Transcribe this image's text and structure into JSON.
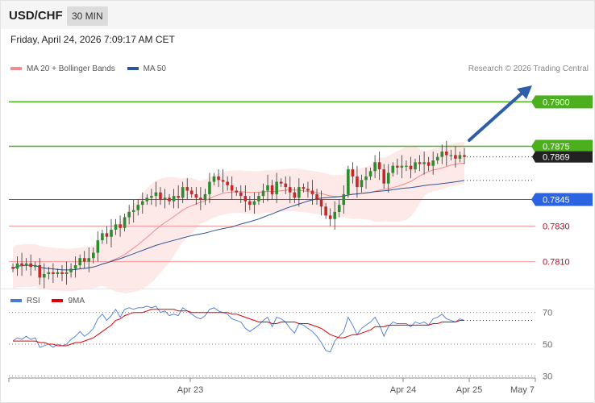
{
  "header": {
    "symbol": "USD/CHF",
    "timeframe": "30 MIN"
  },
  "timestamp": "Friday, April 24, 2026 7:09:17 AM CET",
  "legend": {
    "items": [
      {
        "label": "MA 20 + Bollinger Bands",
        "color": "#f28b8b"
      },
      {
        "label": "MA 50",
        "color": "#2c5597"
      }
    ],
    "credit": "Research © 2026 Trading Central"
  },
  "rsi_legend": {
    "items": [
      {
        "label": "RSI",
        "color": "#4a78d6"
      },
      {
        "label": "9MA",
        "color": "#e00000"
      }
    ]
  },
  "chart_data": {
    "type": "candlestick",
    "ylim": [
      0.7803,
      0.7912
    ],
    "x_ticks": [
      "Apr 23",
      "Apr 24",
      "Apr 25",
      "May 7"
    ],
    "levels": [
      {
        "value": 0.79,
        "label": "0.7900",
        "color": "#4caf1e",
        "kind": "target"
      },
      {
        "value": 0.7875,
        "label": "0.7875",
        "color": "#4caf1e",
        "kind": "resistance"
      },
      {
        "value": 0.7845,
        "label": "0.7845",
        "color": "#2b63e0",
        "kind": "pivot"
      },
      {
        "value": 0.783,
        "label": "0.7830",
        "color": "#f49a9a",
        "kind": "support"
      },
      {
        "value": 0.781,
        "label": "0.7810",
        "color": "#f49a9a",
        "kind": "support"
      }
    ],
    "last_price": {
      "value": 0.7869,
      "label": "0.7869"
    },
    "closes": [
      0.7806,
      0.7809,
      0.7808,
      0.7809,
      0.7807,
      0.7808,
      0.7801,
      0.7803,
      0.7804,
      0.7803,
      0.7804,
      0.7803,
      0.7804,
      0.7806,
      0.7808,
      0.7812,
      0.781,
      0.7812,
      0.7815,
      0.7822,
      0.7826,
      0.7824,
      0.7828,
      0.7831,
      0.7829,
      0.7835,
      0.7838,
      0.7839,
      0.7842,
      0.7844,
      0.7846,
      0.7847,
      0.7849,
      0.7845,
      0.7846,
      0.7844,
      0.7847,
      0.7846,
      0.7852,
      0.785,
      0.7848,
      0.7846,
      0.7845,
      0.7848,
      0.7855,
      0.7858,
      0.7856,
      0.7855,
      0.7853,
      0.785,
      0.7849,
      0.7847,
      0.7844,
      0.7842,
      0.7844,
      0.7847,
      0.785,
      0.7853,
      0.7848,
      0.7855,
      0.7854,
      0.7852,
      0.7849,
      0.7846,
      0.7852,
      0.7851,
      0.785,
      0.7848,
      0.7845,
      0.7841,
      0.7836,
      0.7834,
      0.7838,
      0.7842,
      0.7848,
      0.7862,
      0.7858,
      0.7852,
      0.7856,
      0.7858,
      0.7861,
      0.7866,
      0.7862,
      0.7854,
      0.786,
      0.7864,
      0.7863,
      0.7864,
      0.7864,
      0.7862,
      0.7866,
      0.7865,
      0.7866,
      0.7864,
      0.7867,
      0.7869,
      0.7872,
      0.787,
      0.787,
      0.7868,
      0.787,
      0.7869
    ],
    "rsi": {
      "ticks": [
        70,
        50,
        30
      ],
      "ylim": [
        22,
        78
      ],
      "values": [
        52,
        54,
        53,
        55,
        53,
        54,
        48,
        49,
        50,
        48,
        50,
        49,
        50,
        53,
        55,
        58,
        55,
        57,
        60,
        66,
        69,
        65,
        68,
        72,
        67,
        72,
        73,
        72,
        73,
        73,
        74,
        73,
        74,
        70,
        71,
        68,
        69,
        68,
        73,
        71,
        69,
        67,
        66,
        68,
        72,
        73,
        71,
        70,
        69,
        66,
        65,
        64,
        60,
        58,
        60,
        62,
        65,
        67,
        61,
        67,
        66,
        64,
        60,
        57,
        63,
        62,
        60,
        58,
        55,
        51,
        46,
        45,
        52,
        55,
        58,
        67,
        62,
        56,
        60,
        62,
        64,
        67,
        62,
        55,
        61,
        64,
        63,
        63,
        63,
        61,
        64,
        63,
        64,
        62,
        66,
        67,
        69,
        66,
        65,
        64,
        66,
        65
      ],
      "ma": [
        52,
        52,
        52,
        52,
        52,
        52,
        51,
        51,
        50,
        50,
        49,
        49,
        49,
        50,
        51,
        51,
        52,
        53,
        54,
        56,
        58,
        60,
        62,
        65,
        66,
        68,
        69,
        70,
        70,
        70,
        71,
        72,
        72,
        72,
        72,
        72,
        72,
        71,
        71,
        71,
        70,
        70,
        70,
        70,
        70,
        70,
        70,
        70,
        70,
        69,
        69,
        68,
        67,
        66,
        65,
        64,
        64,
        64,
        63,
        63,
        64,
        64,
        64,
        64,
        63,
        63,
        63,
        62,
        61,
        60,
        58,
        56,
        55,
        54,
        54,
        55,
        56,
        56,
        57,
        58,
        59,
        61,
        61,
        61,
        62,
        62,
        62,
        62,
        62,
        62,
        62,
        62,
        62,
        62,
        63,
        63,
        64,
        64,
        64,
        64,
        65,
        65
      ]
    }
  }
}
